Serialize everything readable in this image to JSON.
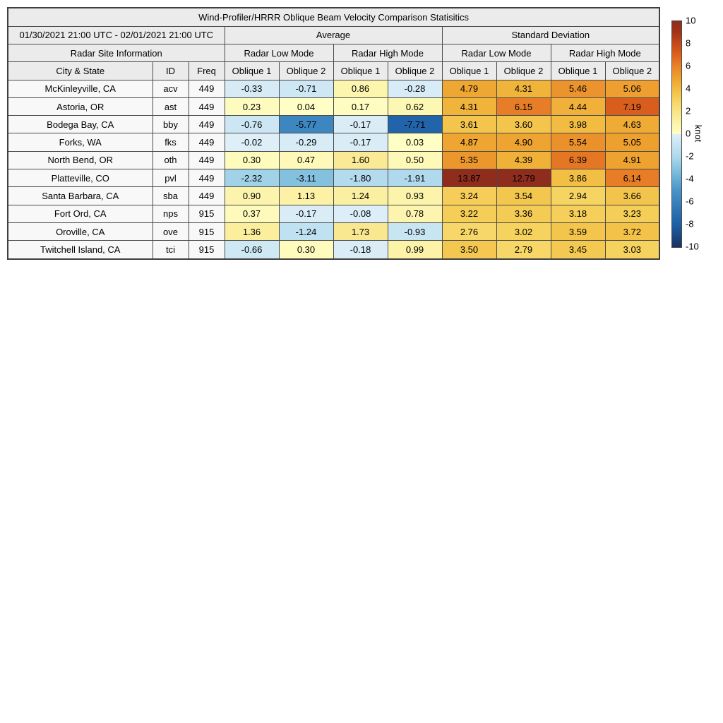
{
  "table_header": {
    "title": "Wind-Profiler/HRRR Oblique Beam Velocity Comparison Statisitics",
    "date_range": "01/30/2021 21:00 UTC - 02/01/2021 21:00 UTC",
    "group_average": "Average",
    "group_std": "Standard Deviation",
    "site_info": "Radar Site Information",
    "modes": [
      "Radar Low Mode",
      "Radar High Mode",
      "Radar Low Mode",
      "Radar High Mode"
    ],
    "columns": [
      "City & State",
      "ID",
      "Freq",
      "Oblique 1",
      "Oblique 2",
      "Oblique 1",
      "Oblique 2",
      "Oblique 1",
      "Oblique 2",
      "Oblique 1",
      "Oblique 2"
    ]
  },
  "chart_data": {
    "type": "heatmap",
    "title": "Wind-Profiler/HRRR Oblique Beam Velocity Comparison Statisitics",
    "period": "01/30/2021 21:00 UTC - 02/01/2021 21:00 UTC",
    "unit": "knot",
    "value_columns": [
      "Average Radar Low Mode Oblique 1",
      "Average Radar Low Mode Oblique 2",
      "Average Radar High Mode Oblique 1",
      "Average Radar High Mode Oblique 2",
      "Standard Deviation Radar Low Mode Oblique 1",
      "Standard Deviation Radar Low Mode Oblique 2",
      "Standard Deviation Radar High Mode Oblique 1",
      "Standard Deviation Radar High Mode Oblique 2"
    ],
    "rows": [
      {
        "city": "McKinleyville, CA",
        "id": "acv",
        "freq": "449",
        "values": [
          -0.33,
          -0.71,
          0.86,
          -0.28,
          4.79,
          4.31,
          5.46,
          5.06
        ]
      },
      {
        "city": "Astoria, OR",
        "id": "ast",
        "freq": "449",
        "values": [
          0.23,
          0.04,
          0.17,
          0.62,
          4.31,
          6.15,
          4.44,
          7.19
        ]
      },
      {
        "city": "Bodega Bay, CA",
        "id": "bby",
        "freq": "449",
        "values": [
          -0.76,
          -5.77,
          -0.17,
          -7.71,
          3.61,
          3.6,
          3.98,
          4.63
        ]
      },
      {
        "city": "Forks, WA",
        "id": "fks",
        "freq": "449",
        "values": [
          -0.02,
          -0.29,
          -0.17,
          0.03,
          4.87,
          4.9,
          5.54,
          5.05
        ]
      },
      {
        "city": "North Bend, OR",
        "id": "oth",
        "freq": "449",
        "values": [
          0.3,
          0.47,
          1.6,
          0.5,
          5.35,
          4.39,
          6.39,
          4.91
        ]
      },
      {
        "city": "Platteville, CO",
        "id": "pvl",
        "freq": "449",
        "values": [
          -2.32,
          -3.11,
          -1.8,
          -1.91,
          13.87,
          12.79,
          3.86,
          6.14
        ]
      },
      {
        "city": "Santa Barbara, CA",
        "id": "sba",
        "freq": "449",
        "values": [
          0.9,
          1.13,
          1.24,
          0.93,
          3.24,
          3.54,
          2.94,
          3.66
        ]
      },
      {
        "city": "Fort Ord, CA",
        "id": "nps",
        "freq": "915",
        "values": [
          0.37,
          -0.17,
          -0.08,
          0.78,
          3.22,
          3.36,
          3.18,
          3.23
        ]
      },
      {
        "city": "Oroville, CA",
        "id": "ove",
        "freq": "915",
        "values": [
          1.36,
          -1.24,
          1.73,
          -0.93,
          2.76,
          3.02,
          3.59,
          3.72
        ]
      },
      {
        "city": "Twitchell Island, CA",
        "id": "tci",
        "freq": "915",
        "values": [
          -0.66,
          0.3,
          -0.18,
          0.99,
          3.5,
          2.79,
          3.45,
          3.03
        ]
      }
    ],
    "colorbar": {
      "min": -10,
      "max": 10,
      "ticks": [
        10,
        8,
        6,
        4,
        2,
        0,
        -2,
        -4,
        -6,
        -8,
        -10
      ],
      "label": "knot"
    },
    "colormap": {
      "positive": [
        "#fffec5",
        "#fcf3a9",
        "#f9e487",
        "#f6d35f",
        "#f1bc40",
        "#eea12f",
        "#e88329",
        "#de611c",
        "#c54a1a",
        "#a2341a",
        "#8e2c1d"
      ],
      "negative": [
        "#deeff8",
        "#c6e4f2",
        "#aed8ec",
        "#88c4e0",
        "#65add3",
        "#4a94c8",
        "#3a82bc",
        "#2a6fb0",
        "#1d60a6",
        "#1b4983",
        "#1b3061"
      ]
    }
  }
}
